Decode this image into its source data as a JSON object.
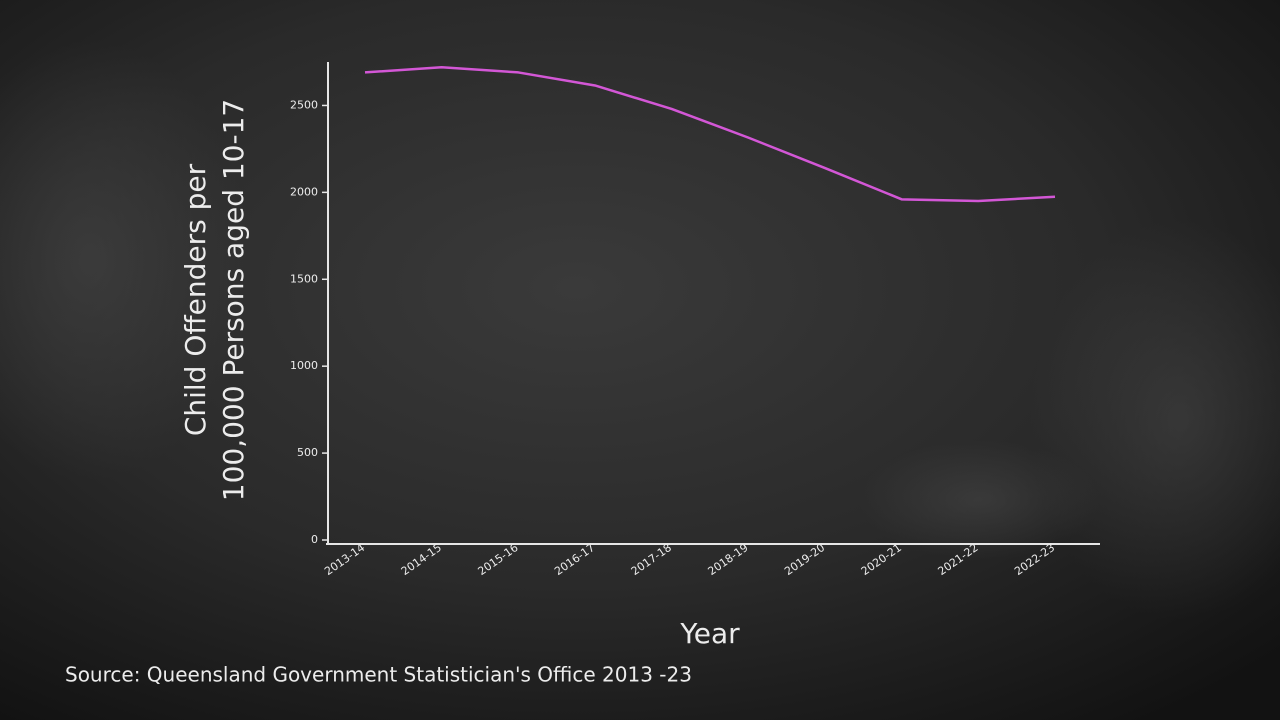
{
  "chart_data": {
    "type": "line",
    "ylabel": [
      "Child Offenders per",
      "100,000 Persons aged 10-17"
    ],
    "xlabel": "Year",
    "source": "Source: Queensland Government Statistician's Office 2013 -23",
    "categories": [
      "2013-14",
      "2014-15",
      "2015-16",
      "2016-17",
      "2017-18",
      "2018-19",
      "2019-20",
      "2020-21",
      "2021-22",
      "2022-23"
    ],
    "values": [
      2690,
      2720,
      2690,
      2615,
      2480,
      2315,
      2140,
      1960,
      1950,
      1975
    ],
    "color": "#d357d6",
    "ylim": [
      0,
      2750
    ],
    "yticks": [
      0,
      500,
      1000,
      1500,
      2000,
      2500
    ]
  }
}
